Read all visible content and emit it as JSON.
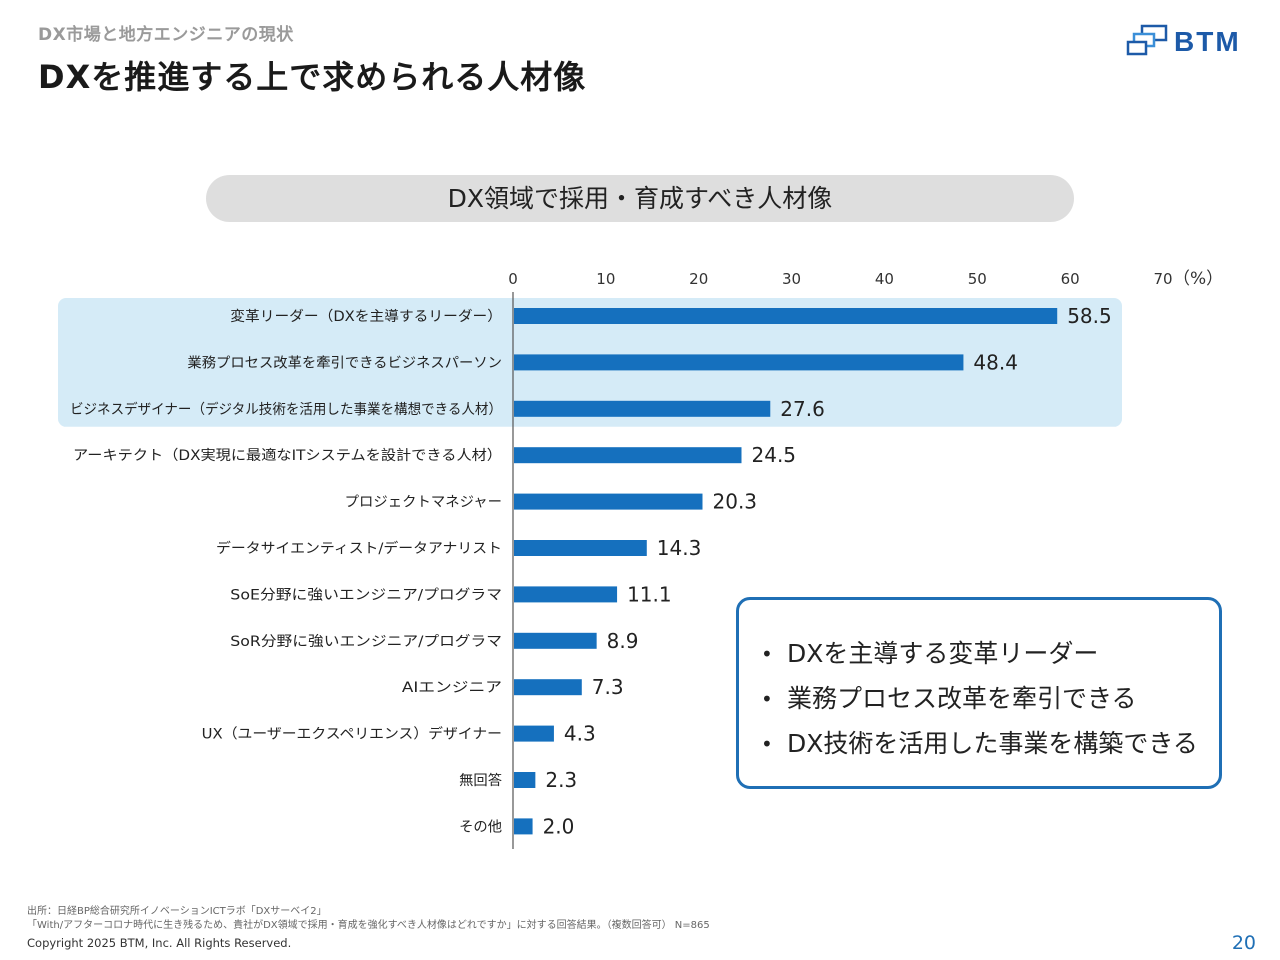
{
  "header": {
    "breadcrumb": "DX市場と地方エンジニアの現状",
    "title": "DXを推進する上で求められる人材像"
  },
  "logo": {
    "text": "BTM",
    "color": "#1d5aa8"
  },
  "chart_data": {
    "type": "bar",
    "orientation": "horizontal",
    "title": "DX領域で採用・育成すべき人材像",
    "unit_label": "（%）",
    "categories": [
      "変革リーダー（DXを主導するリーダー）",
      "業務プロセス改革を牽引できるビジネスパーソン",
      "ビジネスデザイナー（デジタル技術を活用した事業を構想できる人材）",
      "アーキテクト（DX実現に最適なITシステムを設計できる人材）",
      "プロジェクトマネジャー",
      "データサイエンティスト/データアナリスト",
      "SoE分野に強いエンジニア/プログラマ",
      "SoR分野に強いエンジニア/プログラマ",
      "AIエンジニア",
      "UX（ユーザーエクスペリエンス）デザイナー",
      "無回答",
      "その他"
    ],
    "values": [
      58.5,
      48.4,
      27.6,
      24.5,
      20.3,
      14.3,
      11.1,
      8.9,
      7.3,
      4.3,
      2.3,
      2.0
    ],
    "value_labels": [
      "58.5",
      "48.4",
      "27.6",
      "24.5",
      "20.3",
      "14.3",
      "11.1",
      "8.9",
      "7.3",
      "4.3",
      "2.3",
      "2.0"
    ],
    "xlim": [
      0,
      70
    ],
    "ticks": [
      0,
      10,
      20,
      30,
      40,
      50,
      60,
      70
    ],
    "highlighted_rows": 3,
    "bar_color": "#1570be",
    "highlight_color": "#d5ebf7",
    "grid": false
  },
  "callout": {
    "items": [
      "DXを主導する変革リーダー",
      "業務プロセス改革を牽引できる",
      "DX技術を活用した事業を構築できる"
    ],
    "border_color": "#1f6fb5"
  },
  "footer": {
    "source_line1": "出所：日経BP総合研究所イノベーションICTラボ「DXサーベイ2」",
    "source_line2": "「With/アフターコロナ時代に生き残るため、貴社がDX領域で採用・育成を強化すべき人材像はどれですか」に対する回答結果。（複数回答可） N=865",
    "copyright": "Copyright 2025 BTM, Inc. All Rights Reserved.",
    "page_number": "20"
  }
}
